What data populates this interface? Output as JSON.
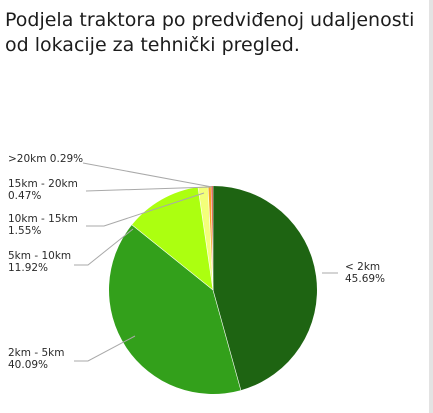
{
  "title_lines": [
    "Podjela traktora po predviđenoj udaljenosti",
    "od lokacije za tehnički pregled."
  ],
  "chart_data": {
    "type": "pie",
    "title": "Podjela traktora po predviđenoj udaljenosti od lokacije za tehnički pregled.",
    "start": "top, clockwise",
    "slices": [
      {
        "name": "< 2km",
        "percent": "45.69%",
        "value": 45.69,
        "color": "#1e6412"
      },
      {
        "name": "2km - 5km",
        "percent": "40.09%",
        "value": 40.09,
        "color": "#33a01b"
      },
      {
        "name": "5km - 10km",
        "percent": "11.92%",
        "value": 11.92,
        "color": "#acff10"
      },
      {
        "name": "10km - 15km",
        "percent": "1.55%",
        "value": 1.55,
        "color": "#f3ff7a"
      },
      {
        "name": "15km - 20km",
        "percent": "0.47%",
        "value": 0.47,
        "color": "#f6a21d"
      },
      {
        "name": ">20km",
        "percent": "0.29%",
        "value": 0.29,
        "color": "#d2331b"
      }
    ]
  }
}
